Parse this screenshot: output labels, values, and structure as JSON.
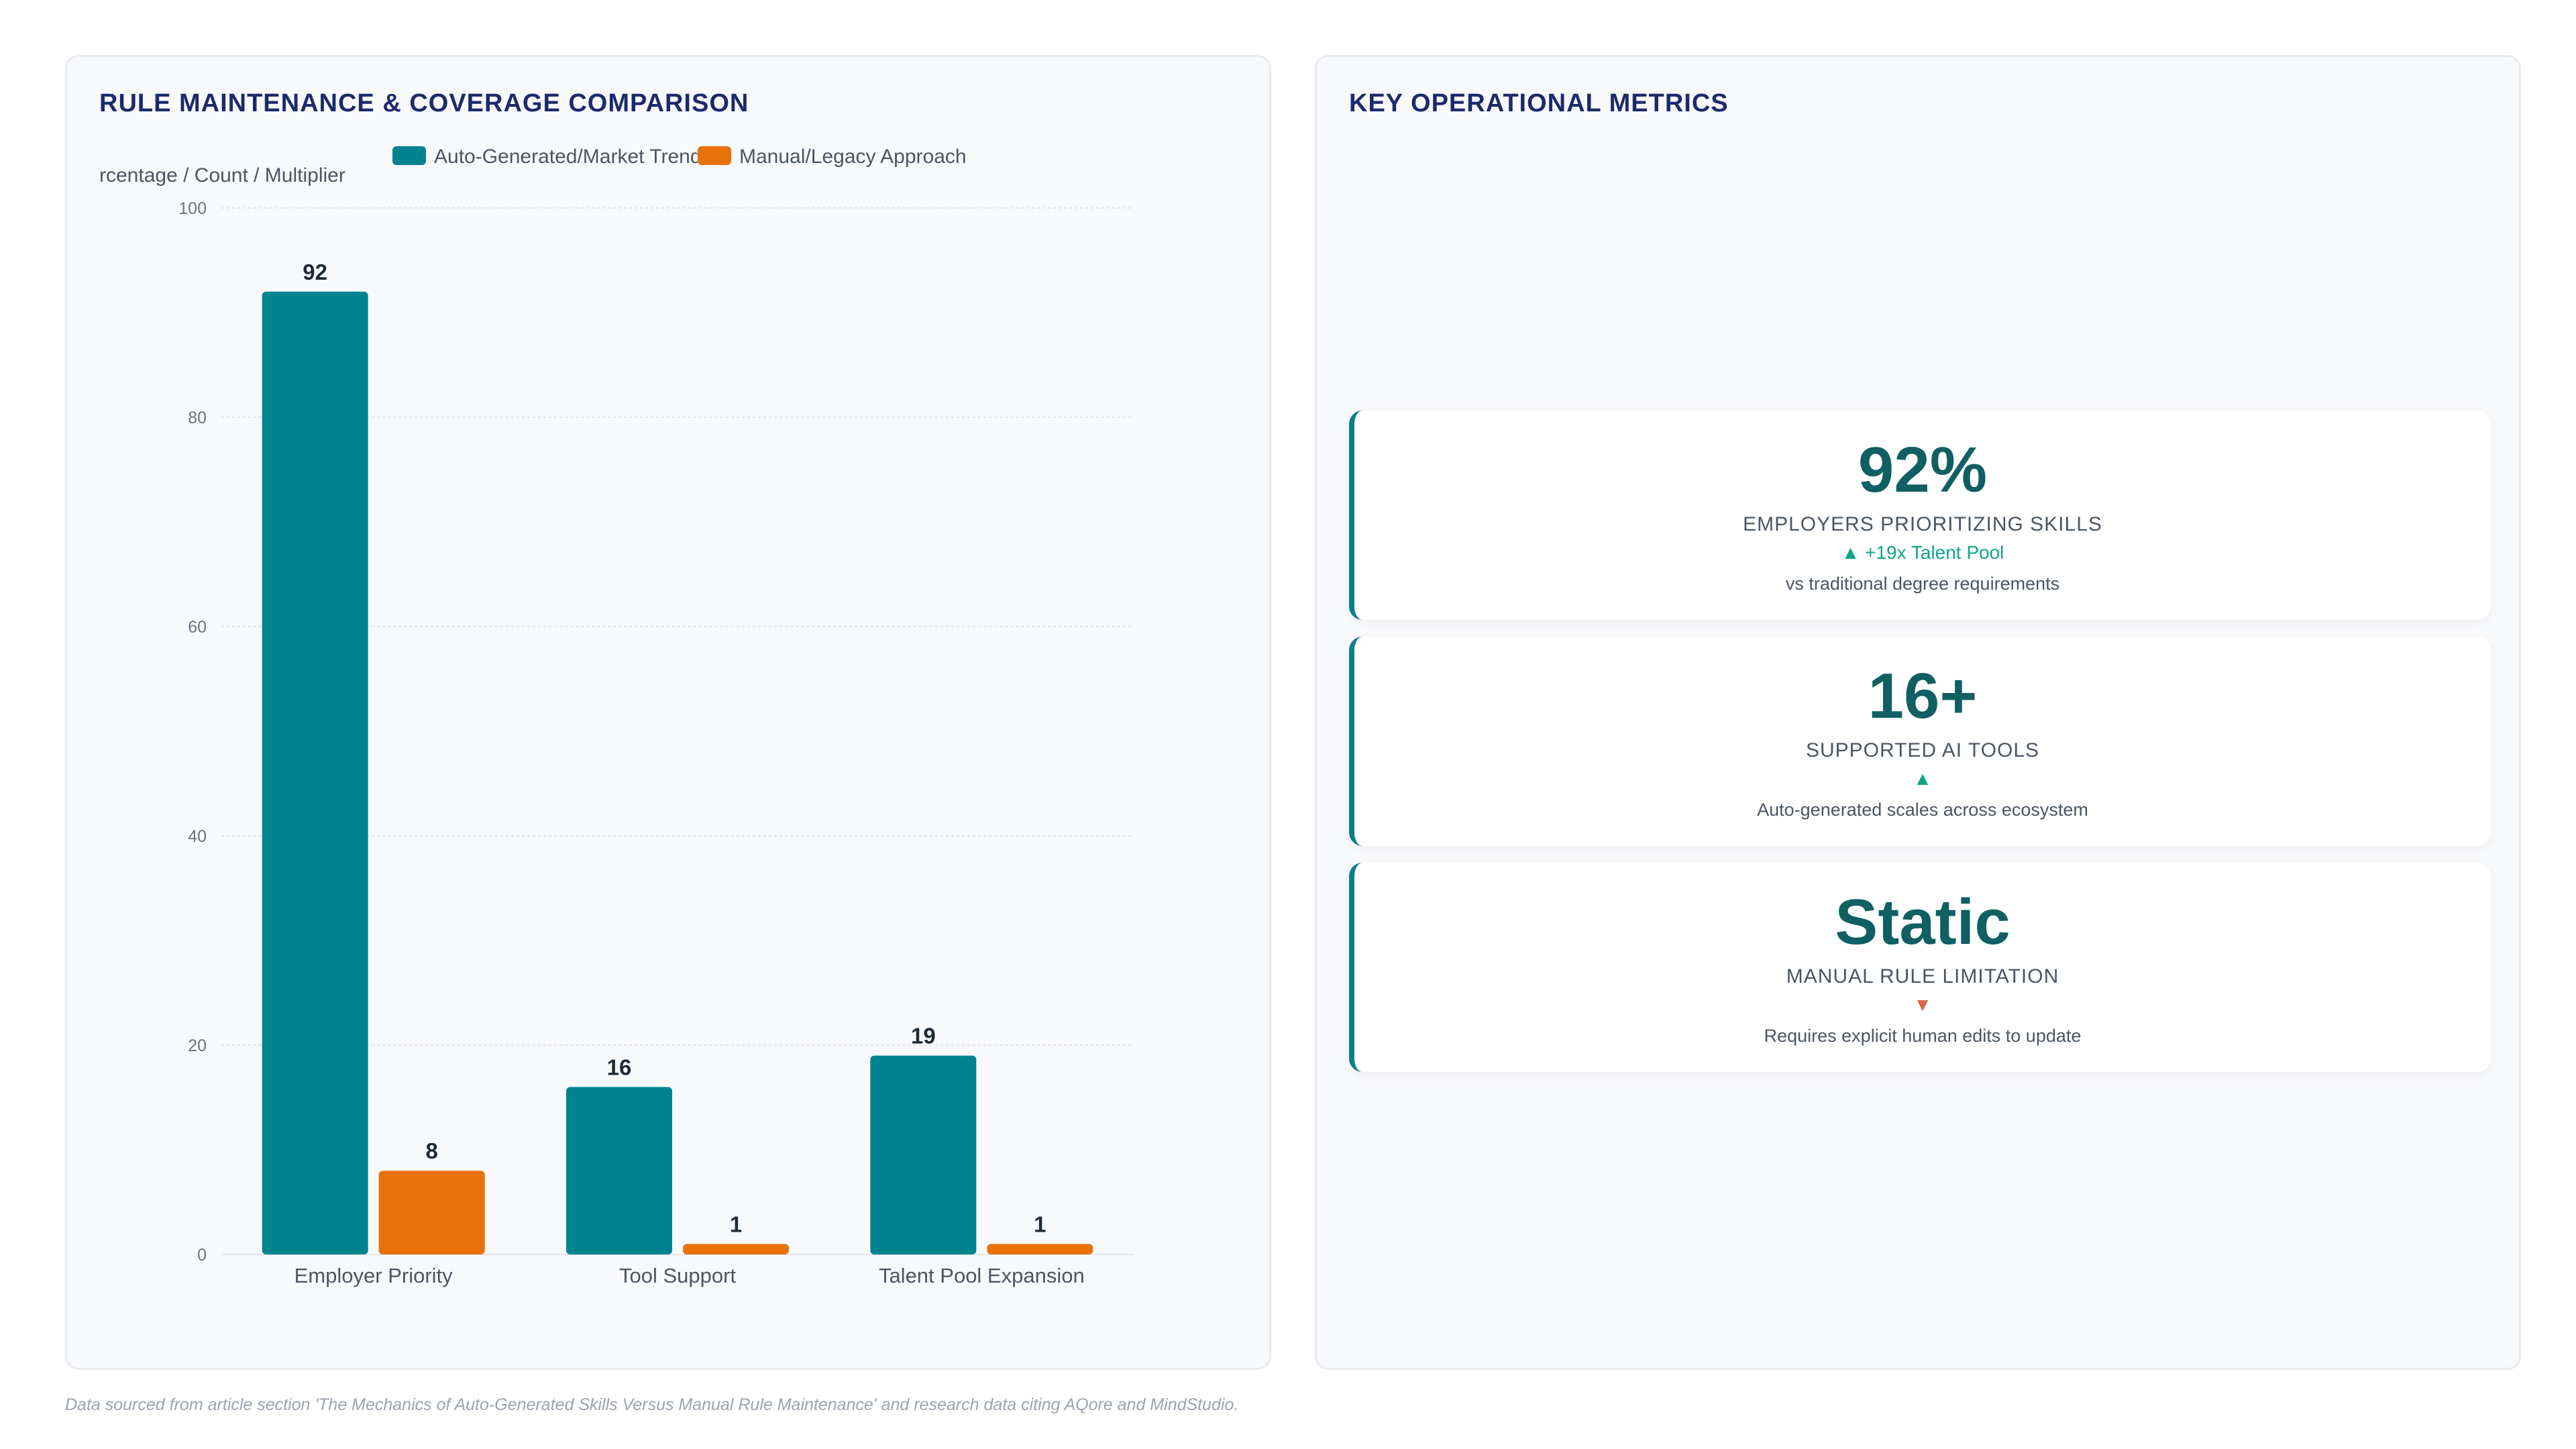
{
  "chart_panel": {
    "title": "RULE MAINTENANCE & COVERAGE COMPARISON"
  },
  "metrics_panel": {
    "title": "KEY OPERATIONAL METRICS"
  },
  "chart_data": {
    "type": "bar",
    "title": "RULE MAINTENANCE & COVERAGE COMPARISON",
    "ylabel": "rcentage / Count / Multiplier",
    "xlabel": "",
    "categories": [
      "Employer Priority",
      "Tool Support",
      "Talent Pool Expansion"
    ],
    "series": [
      {
        "name": "Auto-Generated/Market Trend",
        "values": [
          92,
          16,
          19
        ],
        "color": "#00838f"
      },
      {
        "name": "Manual/Legacy Approach",
        "values": [
          8,
          1,
          1
        ],
        "color": "#e8710a"
      }
    ],
    "ylim": [
      0,
      100
    ],
    "yticks": [
      0,
      20,
      40,
      60,
      80,
      100
    ],
    "grid": true,
    "legend_position": "top"
  },
  "metrics": [
    {
      "value": "92%",
      "label": "EMPLOYERS PRIORITIZING SKILLS",
      "trend_symbol": "▲",
      "trend_text": "+19x Talent Pool",
      "trend_direction": "up",
      "sub": "vs traditional degree requirements"
    },
    {
      "value": "16+",
      "label": "SUPPORTED AI TOOLS",
      "trend_symbol": "▲",
      "trend_text": "",
      "trend_direction": "up",
      "sub": "Auto-generated scales across ecosystem"
    },
    {
      "value": "Static",
      "label": "MANUAL RULE LIMITATION",
      "trend_symbol": "▼",
      "trend_text": "",
      "trend_direction": "down",
      "sub": "Requires explicit human edits to update"
    }
  ],
  "footnote": "Data sourced from article section 'The Mechanics of Auto-Generated Skills Versus Manual Rule Maintenance' and research data citing AQore and MindStudio."
}
